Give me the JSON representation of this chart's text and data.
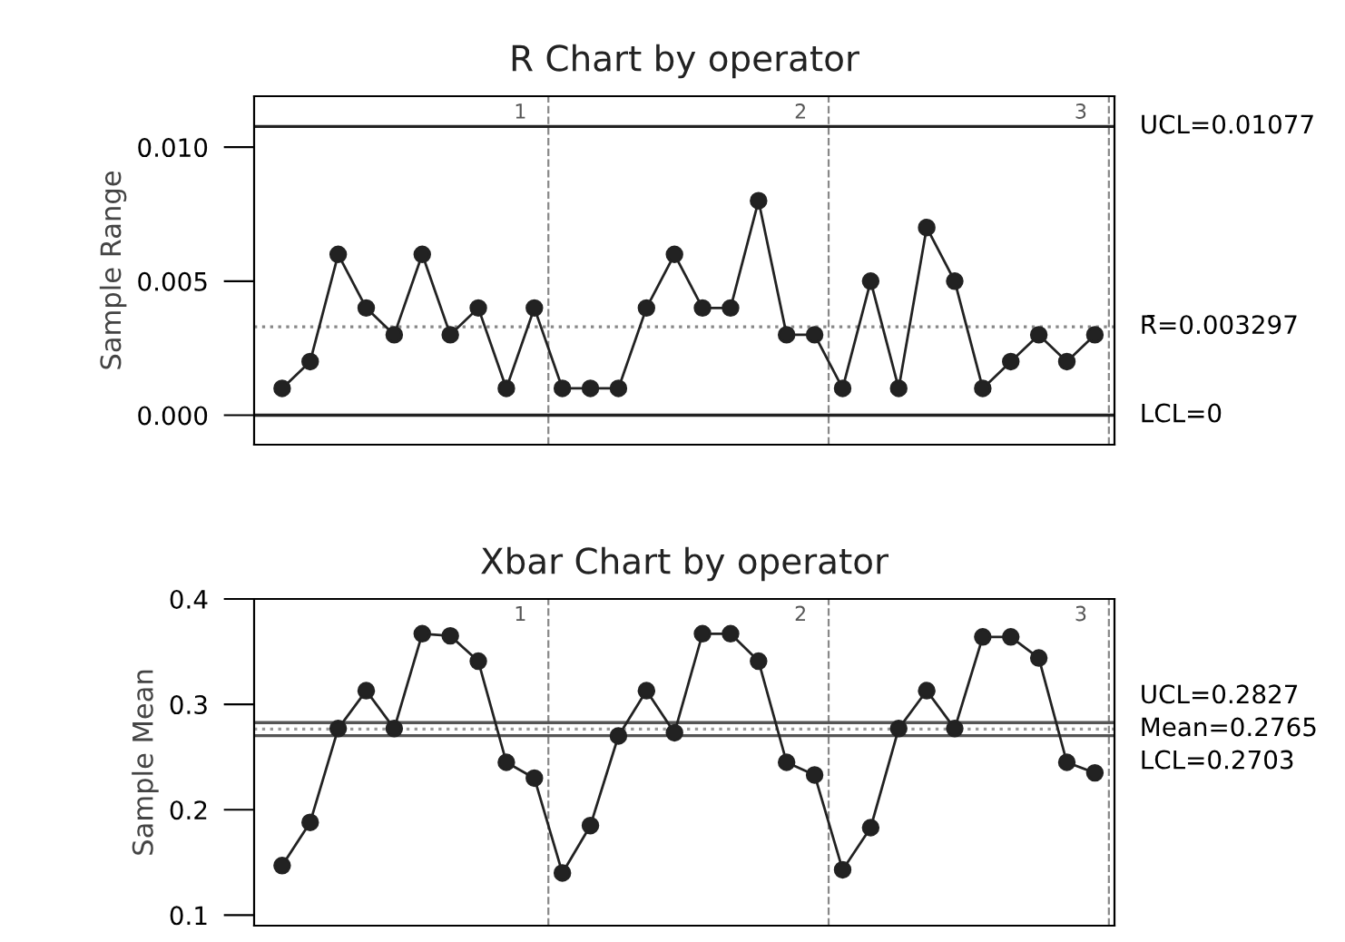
{
  "chart_data": [
    {
      "type": "line",
      "title": "R Chart by operator",
      "ylabel": "Sample Range",
      "categories": [
        null,
        null,
        null,
        null,
        null,
        null,
        null,
        null,
        null,
        null,
        null,
        null,
        null,
        null,
        null,
        null,
        null,
        null,
        null,
        null,
        null,
        null,
        null,
        null,
        null,
        null,
        null,
        null,
        null,
        null
      ],
      "series": [
        {
          "color": "#222222",
          "values": [
            0.001,
            0.002,
            0.006,
            0.004,
            0.003,
            0.006,
            0.003,
            0.004,
            0.001,
            0.004,
            0.001,
            0.001,
            0.001,
            0.004,
            0.006,
            0.004,
            0.004,
            0.008,
            0.003,
            0.003,
            0.001,
            0.005,
            0.001,
            0.007,
            0.005,
            0.001,
            0.002,
            0.003,
            0.002,
            0.003
          ]
        }
      ],
      "ylim": [
        -0.0011,
        0.0119
      ],
      "yticks": [
        {
          "value": 0.0,
          "label": "0.000"
        },
        {
          "value": 0.005,
          "label": "0.005"
        },
        {
          "value": 0.01,
          "label": "0.010"
        }
      ],
      "ref_lines": [
        {
          "axis": "y",
          "value": 0.01077,
          "label": "UCL=0.01077",
          "color": "#222222",
          "line_style": "solid"
        },
        {
          "axis": "y",
          "value": 0.003297,
          "label": "R̄=0.003297",
          "color": "#888888",
          "line_style": "dotted"
        },
        {
          "axis": "y",
          "value": 0,
          "label": "LCL=0",
          "color": "#222222",
          "line_style": "solid"
        }
      ],
      "annotations": [
        "1",
        "2",
        "3"
      ],
      "marker": "circle",
      "line_style": "solid",
      "grid": false,
      "legend": false,
      "tick_labels": "y"
    },
    {
      "type": "line",
      "title": "Xbar Chart by operator",
      "ylabel": "Sample Mean",
      "categories": [
        null,
        null,
        null,
        null,
        null,
        null,
        null,
        null,
        null,
        null,
        null,
        null,
        null,
        null,
        null,
        null,
        null,
        null,
        null,
        null,
        null,
        null,
        null,
        null,
        null,
        null,
        null,
        null,
        null,
        null
      ],
      "series": [
        {
          "color": "#222222",
          "values": [
            0.147,
            0.188,
            0.277,
            0.313,
            0.277,
            0.367,
            0.365,
            0.341,
            0.245,
            0.23,
            0.14,
            0.185,
            0.27,
            0.313,
            0.273,
            0.367,
            0.367,
            0.341,
            0.245,
            0.233,
            0.143,
            0.183,
            0.277,
            0.313,
            0.277,
            0.364,
            0.364,
            0.344,
            0.245,
            0.235
          ]
        }
      ],
      "ylim": [
        0.09,
        0.4
      ],
      "yticks": [
        0.1,
        0.2,
        0.3,
        0.4
      ],
      "ref_lines": [
        {
          "axis": "y",
          "value": 0.2827,
          "label": "UCL=0.2827",
          "color": "#555555",
          "line_style": "solid"
        },
        {
          "axis": "y",
          "value": 0.2765,
          "label": "Mean=0.2765",
          "color": "#999999",
          "line_style": "dotted"
        },
        {
          "axis": "y",
          "value": 0.2703,
          "label": "LCL=0.2703",
          "color": "#555555",
          "line_style": "solid"
        }
      ],
      "annotations": [
        "1",
        "2",
        "3"
      ],
      "marker": "circle",
      "line_style": "solid",
      "grid": false,
      "legend": false,
      "tick_labels": "y"
    }
  ]
}
